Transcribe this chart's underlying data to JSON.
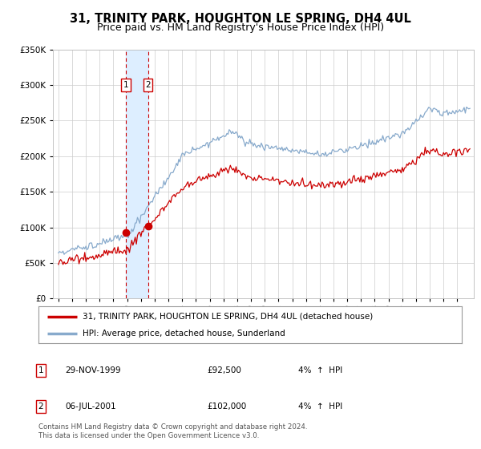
{
  "title": "31, TRINITY PARK, HOUGHTON LE SPRING, DH4 4UL",
  "subtitle": "Price paid vs. HM Land Registry's House Price Index (HPI)",
  "ylim": [
    0,
    350000
  ],
  "yticks": [
    0,
    50000,
    100000,
    150000,
    200000,
    250000,
    300000,
    350000
  ],
  "x_start_year": 1995,
  "x_end_year": 2025,
  "line1_color": "#cc0000",
  "line2_color": "#88aacc",
  "marker_color": "#cc0000",
  "shade_color": "#ddeeff",
  "transaction1_date": "29-NOV-1999",
  "transaction1_price": 92500,
  "transaction1_x": 1999.91,
  "transaction2_date": "06-JUL-2001",
  "transaction2_price": 102000,
  "transaction2_x": 2001.51,
  "legend_line1": "31, TRINITY PARK, HOUGHTON LE SPRING, DH4 4UL (detached house)",
  "legend_line2": "HPI: Average price, detached house, Sunderland",
  "footer": "Contains HM Land Registry data © Crown copyright and database right 2024.\nThis data is licensed under the Open Government Licence v3.0.",
  "title_fontsize": 10.5,
  "subtitle_fontsize": 9,
  "background_color": "#ffffff",
  "grid_color": "#cccccc"
}
